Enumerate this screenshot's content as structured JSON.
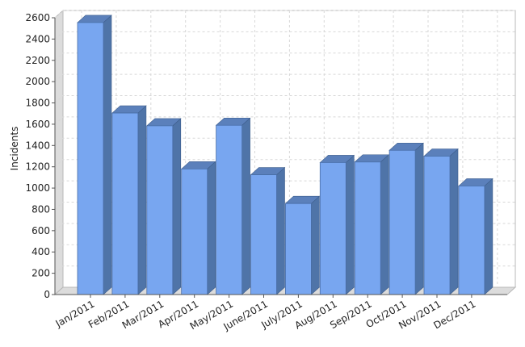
{
  "chart_data": {
    "type": "bar",
    "title": "",
    "xlabel": "",
    "ylabel": "Incidents",
    "categories": [
      "Jan/2011",
      "Feb/2011",
      "Mar/2011",
      "Apr/2011",
      "May/2011",
      "June/2011",
      "July/2011",
      "Aug/2011",
      "Sep/2011",
      "Oct/2011",
      "Nov/2011",
      "Dec/2011"
    ],
    "values": [
      2555,
      1705,
      1585,
      1180,
      1590,
      1125,
      855,
      1240,
      1245,
      1355,
      1300,
      1020
    ],
    "ylim": [
      0,
      2600
    ],
    "yticks": [
      0,
      200,
      400,
      600,
      800,
      1000,
      1200,
      1400,
      1600,
      1800,
      2000,
      2200,
      2400,
      2600
    ],
    "grid": true,
    "style": "3d",
    "colors": {
      "bar_front": "#78a6f0",
      "bar_side": "#4f74a8",
      "bar_top": "#5b80bb",
      "wall": "#dcdcdc",
      "grid": "#d8d8d8"
    }
  }
}
